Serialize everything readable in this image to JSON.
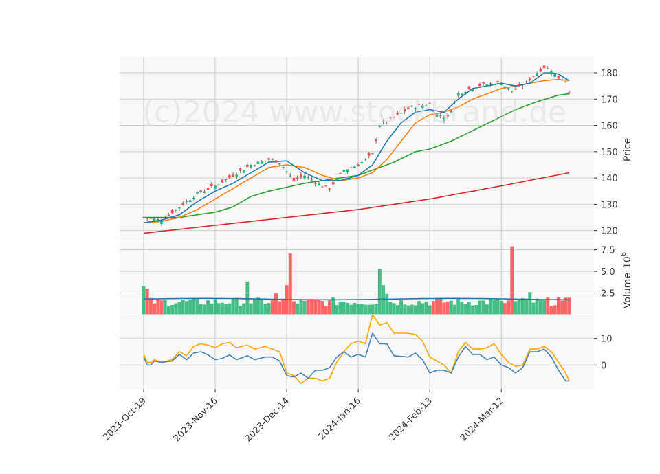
{
  "chart_data": {
    "type": "line",
    "watermark": "(c)2024 www.stockbrand.de",
    "x_tick_labels": [
      "2023-Oct-19",
      "2023-Nov-16",
      "2023-Dec-14",
      "2024-Jan-16",
      "2024-Feb-13",
      "2024-Mar-12"
    ],
    "x_tick_index": [
      0,
      20,
      40,
      60,
      80,
      100
    ],
    "n_days": 120,
    "colors": {
      "up": "#26b373",
      "down": "#ff4c4c",
      "ma_short": "#1f77b4",
      "ma_mid": "#ff7f0e",
      "ma_long": "#2ca02c",
      "ma_200": "#d62728",
      "osc_fast": "#4682b4",
      "osc_slow": "#ffa500",
      "panel_bg": "#f8f8f8",
      "grid": "#cccccc"
    },
    "price_panel": {
      "ylabel": "Price",
      "ylim": [
        116,
        186
      ],
      "yticks": [
        120,
        130,
        140,
        150,
        160,
        170,
        180
      ],
      "close_keypoints": [
        [
          0,
          125
        ],
        [
          5,
          124
        ],
        [
          10,
          129
        ],
        [
          15,
          134
        ],
        [
          20,
          137
        ],
        [
          25,
          141
        ],
        [
          30,
          145
        ],
        [
          35,
          147
        ],
        [
          38,
          146
        ],
        [
          42,
          139
        ],
        [
          45,
          141
        ],
        [
          50,
          137
        ],
        [
          52,
          136
        ],
        [
          56,
          143
        ],
        [
          60,
          145
        ],
        [
          64,
          149
        ],
        [
          66,
          160
        ],
        [
          70,
          163
        ],
        [
          75,
          167
        ],
        [
          80,
          168
        ],
        [
          82,
          164
        ],
        [
          85,
          163
        ],
        [
          88,
          172
        ],
        [
          93,
          175
        ],
        [
          98,
          176
        ],
        [
          100,
          176
        ],
        [
          103,
          173
        ],
        [
          106,
          175
        ],
        [
          110,
          180
        ],
        [
          112,
          182
        ],
        [
          114,
          181
        ],
        [
          116,
          178
        ],
        [
          118,
          177
        ],
        [
          119,
          173
        ]
      ],
      "ma_short": [
        [
          0,
          123
        ],
        [
          5,
          124
        ],
        [
          10,
          126
        ],
        [
          15,
          131
        ],
        [
          20,
          135
        ],
        [
          25,
          138
        ],
        [
          30,
          142
        ],
        [
          35,
          146
        ],
        [
          40,
          146.5
        ],
        [
          45,
          142
        ],
        [
          50,
          139
        ],
        [
          55,
          139
        ],
        [
          60,
          141
        ],
        [
          64,
          145
        ],
        [
          68,
          154
        ],
        [
          72,
          161
        ],
        [
          76,
          165
        ],
        [
          80,
          166
        ],
        [
          84,
          165
        ],
        [
          88,
          170
        ],
        [
          92,
          174
        ],
        [
          96,
          175
        ],
        [
          100,
          176
        ],
        [
          104,
          175
        ],
        [
          108,
          176
        ],
        [
          112,
          180
        ],
        [
          114,
          180
        ],
        [
          116,
          179.5
        ],
        [
          119,
          177
        ]
      ],
      "ma_mid": [
        [
          0,
          123
        ],
        [
          5,
          123.5
        ],
        [
          10,
          125
        ],
        [
          15,
          128
        ],
        [
          20,
          132
        ],
        [
          25,
          136
        ],
        [
          30,
          140
        ],
        [
          35,
          144
        ],
        [
          40,
          145
        ],
        [
          45,
          144
        ],
        [
          50,
          141
        ],
        [
          55,
          139
        ],
        [
          60,
          140
        ],
        [
          64,
          142
        ],
        [
          68,
          147
        ],
        [
          72,
          154
        ],
        [
          76,
          161
        ],
        [
          80,
          164
        ],
        [
          84,
          165
        ],
        [
          88,
          167
        ],
        [
          92,
          170
        ],
        [
          96,
          172
        ],
        [
          100,
          174
        ],
        [
          104,
          175
        ],
        [
          108,
          176
        ],
        [
          112,
          177
        ],
        [
          116,
          177.5
        ],
        [
          119,
          177
        ]
      ],
      "ma_long": [
        [
          0,
          125
        ],
        [
          10,
          125
        ],
        [
          20,
          127
        ],
        [
          25,
          129
        ],
        [
          30,
          133
        ],
        [
          35,
          135
        ],
        [
          45,
          138
        ],
        [
          55,
          140
        ],
        [
          60,
          141
        ],
        [
          64,
          143
        ],
        [
          70,
          146
        ],
        [
          76,
          150
        ],
        [
          80,
          151
        ],
        [
          86,
          154
        ],
        [
          92,
          158
        ],
        [
          98,
          162
        ],
        [
          104,
          166
        ],
        [
          110,
          169
        ],
        [
          116,
          171.5
        ],
        [
          119,
          172
        ]
      ],
      "ma_200": [
        [
          0,
          119
        ],
        [
          20,
          122
        ],
        [
          40,
          125
        ],
        [
          60,
          128
        ],
        [
          80,
          132
        ],
        [
          100,
          137
        ],
        [
          119,
          142
        ]
      ]
    },
    "volume_panel": {
      "ylabel": "Volume",
      "exponent": "6",
      "ylim": [
        0,
        8.5
      ],
      "yticks": [
        2.5,
        5.0,
        7.5
      ],
      "ytick_labels": [
        "2.5",
        "5.0",
        "7.5"
      ],
      "baseline": 1.8,
      "spikes": [
        [
          0,
          3.3
        ],
        [
          1,
          3.0
        ],
        [
          29,
          3.8
        ],
        [
          37,
          2.5
        ],
        [
          40,
          3.4
        ],
        [
          41,
          7.1
        ],
        [
          45,
          1.6
        ],
        [
          66,
          5.3
        ],
        [
          67,
          3.4
        ],
        [
          68,
          2.4
        ],
        [
          100,
          1.6
        ],
        [
          103,
          7.9
        ],
        [
          108,
          2.6
        ],
        [
          116,
          2.0
        ]
      ],
      "avg_line": 1.8
    },
    "oscillator_panel": {
      "yticks": [
        0,
        10
      ],
      "ytick_labels": [
        "0",
        "10"
      ],
      "ylim": [
        -9,
        19
      ],
      "fast": [
        [
          0,
          3
        ],
        [
          1,
          0
        ],
        [
          2,
          0
        ],
        [
          3,
          1.5
        ],
        [
          5,
          1
        ],
        [
          8,
          1.5
        ],
        [
          10,
          4
        ],
        [
          12,
          2
        ],
        [
          14,
          4.5
        ],
        [
          16,
          5
        ],
        [
          18,
          3.8
        ],
        [
          20,
          2
        ],
        [
          22,
          2.5
        ],
        [
          24,
          3.8
        ],
        [
          26,
          2
        ],
        [
          29,
          3.5
        ],
        [
          31,
          2
        ],
        [
          34,
          3
        ],
        [
          36,
          3
        ],
        [
          38,
          1.5
        ],
        [
          40,
          -4
        ],
        [
          42,
          -4.5
        ],
        [
          44,
          -3
        ],
        [
          46,
          -5
        ],
        [
          48,
          -2
        ],
        [
          50,
          -2
        ],
        [
          52,
          -1
        ],
        [
          54,
          3
        ],
        [
          56,
          5
        ],
        [
          58,
          3
        ],
        [
          60,
          4
        ],
        [
          62,
          3
        ],
        [
          64,
          12
        ],
        [
          66,
          8
        ],
        [
          68,
          8
        ],
        [
          70,
          3.5
        ],
        [
          74,
          3
        ],
        [
          76,
          4.5
        ],
        [
          78,
          2
        ],
        [
          80,
          -3
        ],
        [
          82,
          -2
        ],
        [
          84,
          -2
        ],
        [
          86,
          -3
        ],
        [
          88,
          3
        ],
        [
          90,
          7
        ],
        [
          92,
          4
        ],
        [
          94,
          4
        ],
        [
          96,
          2
        ],
        [
          98,
          3
        ],
        [
          100,
          0
        ],
        [
          102,
          -1
        ],
        [
          104,
          -3
        ],
        [
          106,
          -1
        ],
        [
          108,
          5
        ],
        [
          110,
          5
        ],
        [
          112,
          6
        ],
        [
          114,
          3
        ],
        [
          116,
          -2
        ],
        [
          118,
          -6
        ],
        [
          119,
          -6
        ]
      ],
      "slow": [
        [
          0,
          4
        ],
        [
          1,
          1
        ],
        [
          2,
          1
        ],
        [
          3,
          2
        ],
        [
          5,
          1
        ],
        [
          8,
          2
        ],
        [
          10,
          5
        ],
        [
          12,
          3.5
        ],
        [
          14,
          7
        ],
        [
          16,
          8
        ],
        [
          18,
          7.5
        ],
        [
          20,
          6.5
        ],
        [
          22,
          8
        ],
        [
          24,
          8.5
        ],
        [
          26,
          6.5
        ],
        [
          29,
          7.5
        ],
        [
          31,
          6
        ],
        [
          34,
          7
        ],
        [
          36,
          6
        ],
        [
          38,
          5
        ],
        [
          40,
          -3
        ],
        [
          42,
          -4
        ],
        [
          44,
          -7
        ],
        [
          46,
          -5
        ],
        [
          48,
          -5
        ],
        [
          50,
          -6
        ],
        [
          52,
          -5
        ],
        [
          54,
          1
        ],
        [
          56,
          5
        ],
        [
          58,
          8
        ],
        [
          60,
          9
        ],
        [
          62,
          8
        ],
        [
          64,
          19
        ],
        [
          66,
          15
        ],
        [
          68,
          16
        ],
        [
          70,
          12
        ],
        [
          74,
          12
        ],
        [
          76,
          11.5
        ],
        [
          78,
          9
        ],
        [
          80,
          3
        ],
        [
          82,
          1.5
        ],
        [
          84,
          0
        ],
        [
          86,
          -3
        ],
        [
          88,
          5
        ],
        [
          90,
          8.5
        ],
        [
          92,
          6
        ],
        [
          94,
          6
        ],
        [
          96,
          6.5
        ],
        [
          98,
          8
        ],
        [
          100,
          4
        ],
        [
          102,
          1
        ],
        [
          104,
          -0.5
        ],
        [
          106,
          0
        ],
        [
          108,
          6
        ],
        [
          110,
          6
        ],
        [
          112,
          7
        ],
        [
          114,
          5
        ],
        [
          116,
          1
        ],
        [
          118,
          -3
        ],
        [
          119,
          -6
        ]
      ]
    }
  }
}
